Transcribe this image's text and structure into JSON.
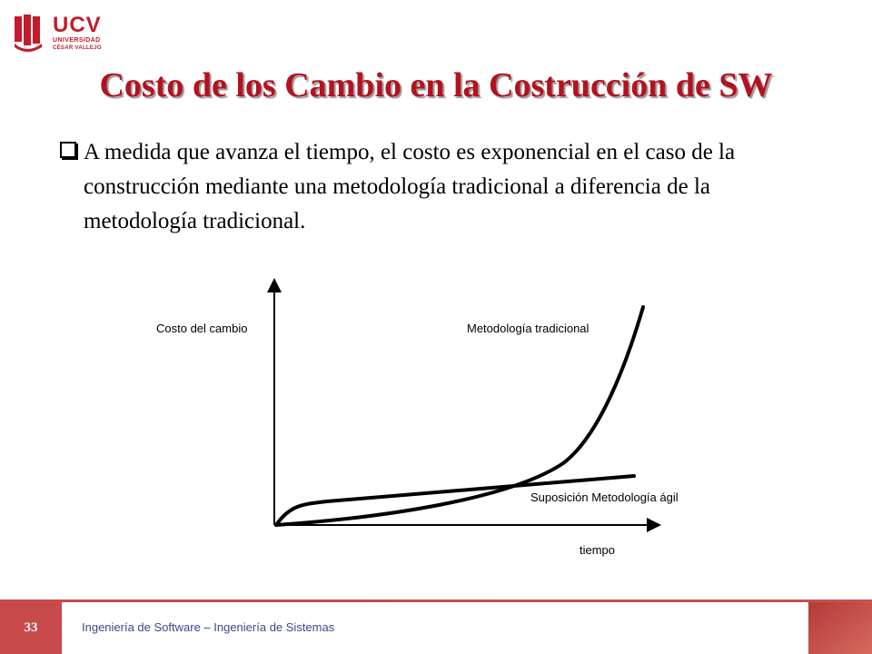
{
  "logo": {
    "brand": "UCV",
    "line1": "UNIVERSIDAD",
    "line2": "CÉSAR VALLEJO"
  },
  "slide": {
    "title": "Costo de los Cambio en la Costrucción de SW",
    "body": "A medida que avanza el tiempo, el costo es exponencial en el caso de la construcción mediante una metodología tradicional a diferencia de la metodología tradicional."
  },
  "chart_data": {
    "type": "line",
    "ylabel": "Costo del cambio",
    "xlabel": "tiempo",
    "grid": false,
    "ticks": false,
    "series": [
      {
        "name": "Metodología tradicional",
        "shape": "exponential growth, low at start, rising steeply near the end"
      },
      {
        "name": "Suposición Metodología ágil",
        "shape": "quick initial rise then gentle linear increase"
      }
    ]
  },
  "footer": {
    "page_number": "33",
    "text": "Ingeniería de Software – Ingeniería  de Sistemas"
  },
  "colors": {
    "title": "#b3121f",
    "brand": "#c41c2c",
    "footer_bar": "#c94a4a",
    "footer_text": "#3a4a8a"
  }
}
